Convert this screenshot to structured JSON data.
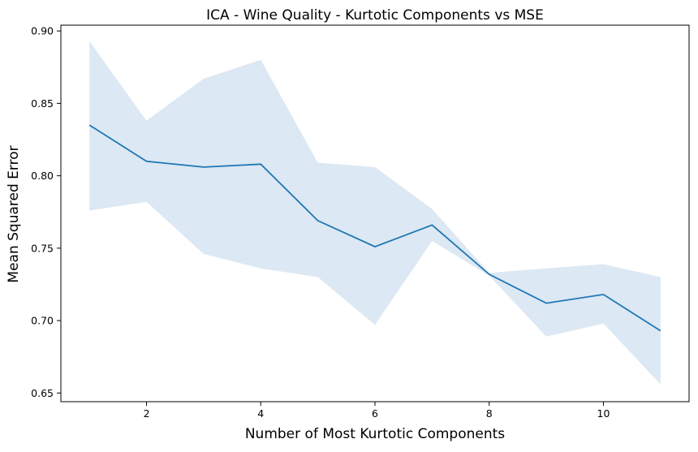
{
  "chart_data": {
    "type": "line",
    "title": "ICA - Wine Quality - Kurtotic Components vs MSE",
    "xlabel": "Number of Most Kurtotic Components",
    "ylabel": "Mean Squared Error",
    "x": [
      1,
      2,
      3,
      4,
      5,
      6,
      7,
      8,
      9,
      10,
      11
    ],
    "series": [
      {
        "values": [
          0.835,
          0.81,
          0.806,
          0.808,
          0.769,
          0.751,
          0.766,
          0.732,
          0.712,
          0.718,
          0.693
        ],
        "upper": [
          0.893,
          0.838,
          0.867,
          0.88,
          0.809,
          0.806,
          0.777,
          0.733,
          0.736,
          0.739,
          0.73
        ],
        "lower": [
          0.776,
          0.782,
          0.746,
          0.736,
          0.73,
          0.697,
          0.755,
          0.731,
          0.689,
          0.698,
          0.656
        ]
      }
    ],
    "xlim": [
      0.5,
      11.5
    ],
    "ylim": [
      0.644,
      0.904
    ],
    "xticks": [
      2,
      4,
      6,
      8,
      10
    ],
    "yticks": [
      0.65,
      0.7,
      0.75,
      0.8,
      0.85,
      0.9
    ],
    "xtick_labels": [
      "2",
      "4",
      "6",
      "8",
      "10"
    ],
    "ytick_labels": [
      "0.65",
      "0.70",
      "0.75",
      "0.80",
      "0.85",
      "0.90"
    ],
    "grid": false,
    "line_color": "#1f77b4",
    "band_color": "#dce8f3"
  }
}
